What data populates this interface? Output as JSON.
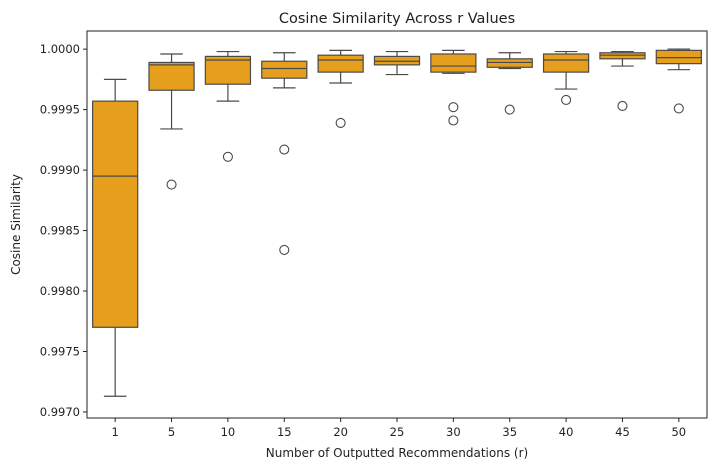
{
  "chart_data": {
    "type": "box",
    "title": "Cosine Similarity Across r Values",
    "xlabel": "Number of Outputted Recommendations (r)",
    "ylabel": "Cosine Similarity",
    "ylim": [
      0.99695,
      1.00015
    ],
    "yticks": [
      0.997,
      0.9975,
      0.998,
      0.9985,
      0.999,
      0.9995,
      1.0
    ],
    "ytick_labels": [
      "0.9970",
      "0.9975",
      "0.9980",
      "0.9985",
      "0.9990",
      "0.9995",
      "1.0000"
    ],
    "grid": false,
    "box_color": "#e69f1d",
    "line_color": "#4a4a4a",
    "categories": [
      "1",
      "5",
      "10",
      "15",
      "20",
      "25",
      "30",
      "35",
      "40",
      "45",
      "50"
    ],
    "boxes": [
      {
        "whislo": 0.99713,
        "q1": 0.9977,
        "med": 0.99895,
        "q3": 0.99957,
        "whishi": 0.99975,
        "fliers": []
      },
      {
        "whislo": 0.99934,
        "q1": 0.99966,
        "med": 0.99987,
        "q3": 0.99989,
        "whishi": 0.99996,
        "fliers": [
          0.99888
        ]
      },
      {
        "whislo": 0.99957,
        "q1": 0.99971,
        "med": 0.99991,
        "q3": 0.99994,
        "whishi": 0.99998,
        "fliers": [
          0.99911
        ]
      },
      {
        "whislo": 0.99968,
        "q1": 0.99976,
        "med": 0.99984,
        "q3": 0.9999,
        "whishi": 0.99997,
        "fliers": [
          0.99917,
          0.99834
        ]
      },
      {
        "whislo": 0.99972,
        "q1": 0.99981,
        "med": 0.99991,
        "q3": 0.99995,
        "whishi": 0.99999,
        "fliers": [
          0.99939
        ]
      },
      {
        "whislo": 0.99979,
        "q1": 0.99987,
        "med": 0.9999,
        "q3": 0.99994,
        "whishi": 0.99998,
        "fliers": []
      },
      {
        "whislo": 0.9998,
        "q1": 0.99981,
        "med": 0.99986,
        "q3": 0.99996,
        "whishi": 0.99999,
        "fliers": [
          0.99952,
          0.99941
        ]
      },
      {
        "whislo": 0.99984,
        "q1": 0.99985,
        "med": 0.99989,
        "q3": 0.99992,
        "whishi": 0.99997,
        "fliers": [
          0.9995
        ]
      },
      {
        "whislo": 0.99967,
        "q1": 0.99981,
        "med": 0.99991,
        "q3": 0.99996,
        "whishi": 0.99998,
        "fliers": [
          0.99958
        ]
      },
      {
        "whislo": 0.99986,
        "q1": 0.99992,
        "med": 0.99995,
        "q3": 0.99997,
        "whishi": 0.99998,
        "fliers": [
          0.99953
        ]
      },
      {
        "whislo": 0.99983,
        "q1": 0.99988,
        "med": 0.99993,
        "q3": 0.99999,
        "whishi": 1.0,
        "fliers": [
          0.99951
        ]
      }
    ]
  }
}
